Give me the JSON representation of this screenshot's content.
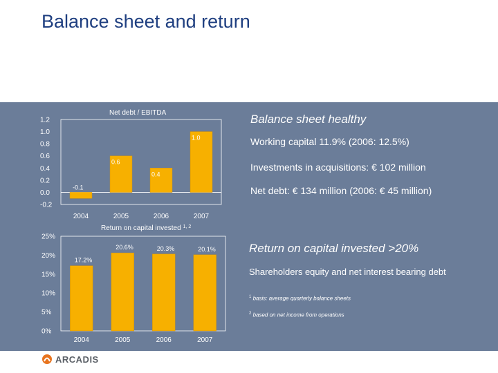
{
  "slide": {
    "title": "Balance sheet and return"
  },
  "right_top": {
    "heading": "Balance sheet healthy",
    "bullets": [
      "Working capital 11.9% (2006: 12.5%)",
      "Investments in acquisitions: € 102 million",
      "Net debt: € 134 million (2006: € 45 million)"
    ]
  },
  "right_bottom": {
    "heading": "Return on capital invested  >20%",
    "bullets": [
      "Shareholders equity and net interest bearing debt"
    ],
    "footnotes": [
      {
        "mark": "1",
        "text": "basis: average quarterly balance sheets"
      },
      {
        "mark": "2",
        "text": "based on net income from operations"
      }
    ]
  },
  "logo": {
    "name": "ARCADIS"
  },
  "colors": {
    "panel_bg": "#6b7d99",
    "bar_fill": "#f7b000",
    "title": "#1f3f80"
  },
  "chart_data": [
    {
      "type": "bar",
      "title": "Net debt / EBITDA",
      "categories": [
        "2004",
        "2005",
        "2006",
        "2007"
      ],
      "values": [
        -0.1,
        0.6,
        0.4,
        1.0
      ],
      "value_labels": [
        "-0.1",
        "0.6",
        "0.4",
        "1.0"
      ],
      "y_ticks": [
        "1.2",
        "1.0",
        "0.8",
        "0.6",
        "0.4",
        "0.2",
        "0.0",
        "-0.2"
      ],
      "ylim": [
        -0.2,
        1.2
      ]
    },
    {
      "type": "bar",
      "title": "Return on capital invested",
      "title_sup": "1, 2",
      "categories": [
        "2004",
        "2005",
        "2006",
        "2007"
      ],
      "values": [
        17.2,
        20.6,
        20.3,
        20.1
      ],
      "value_labels": [
        "17.2%",
        "20.6%",
        "20.3%",
        "20.1%"
      ],
      "y_ticks": [
        "25%",
        "20%",
        "15%",
        "10%",
        "5%",
        "0%"
      ],
      "ylim": [
        0,
        25
      ]
    }
  ]
}
